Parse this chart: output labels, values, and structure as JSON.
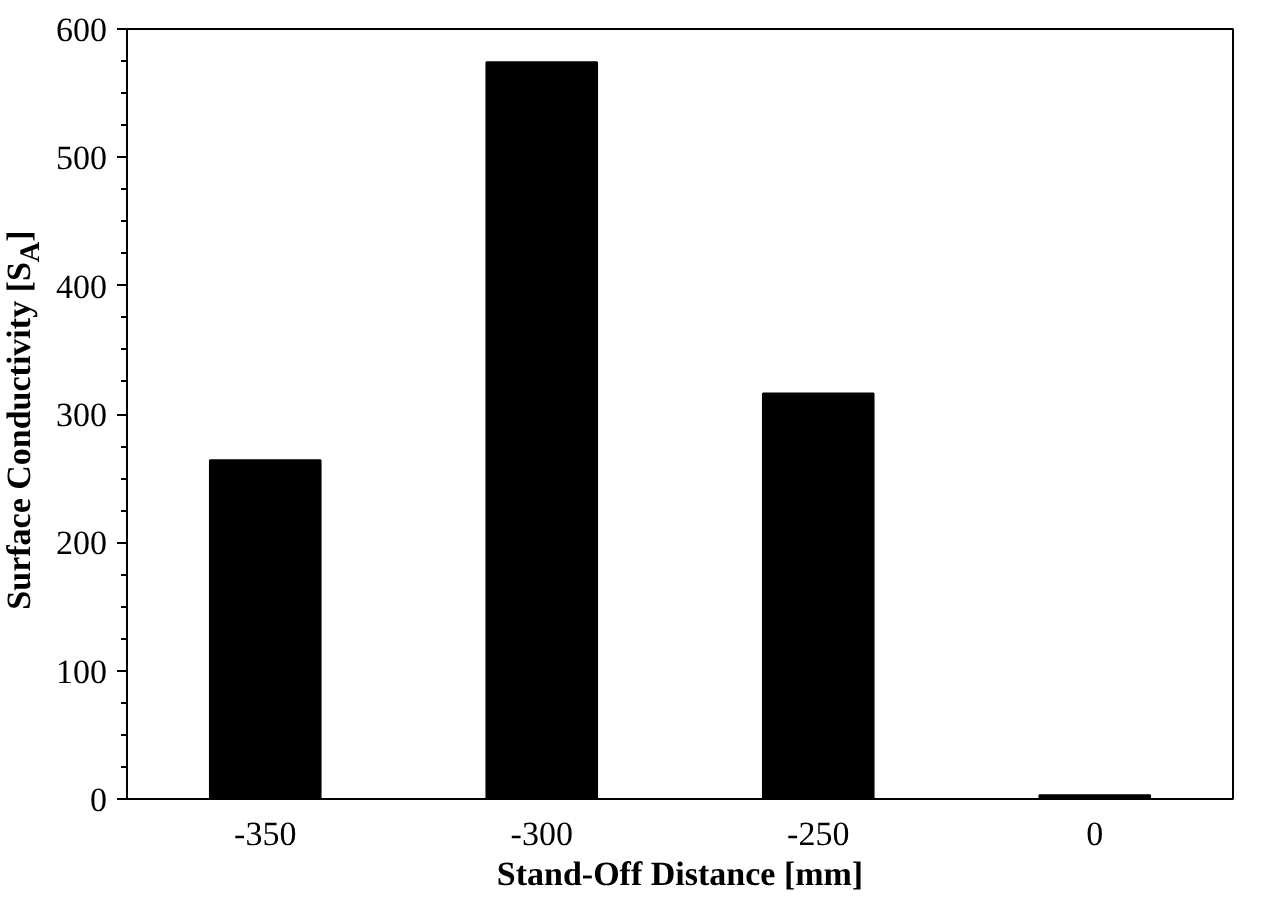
{
  "chart_data": {
    "type": "bar",
    "xlabel": "Stand-Off Distance [mm]",
    "ylabel": "Surface Conductivity [S$_{A}$]",
    "categories": [
      "-350",
      "-300",
      "-250",
      "0"
    ],
    "values": [
      264,
      574,
      316,
      3
    ],
    "color": "#000000",
    "ylim": [
      0,
      600
    ],
    "yticks": [
      0,
      100,
      200,
      300,
      400,
      500,
      600
    ]
  }
}
